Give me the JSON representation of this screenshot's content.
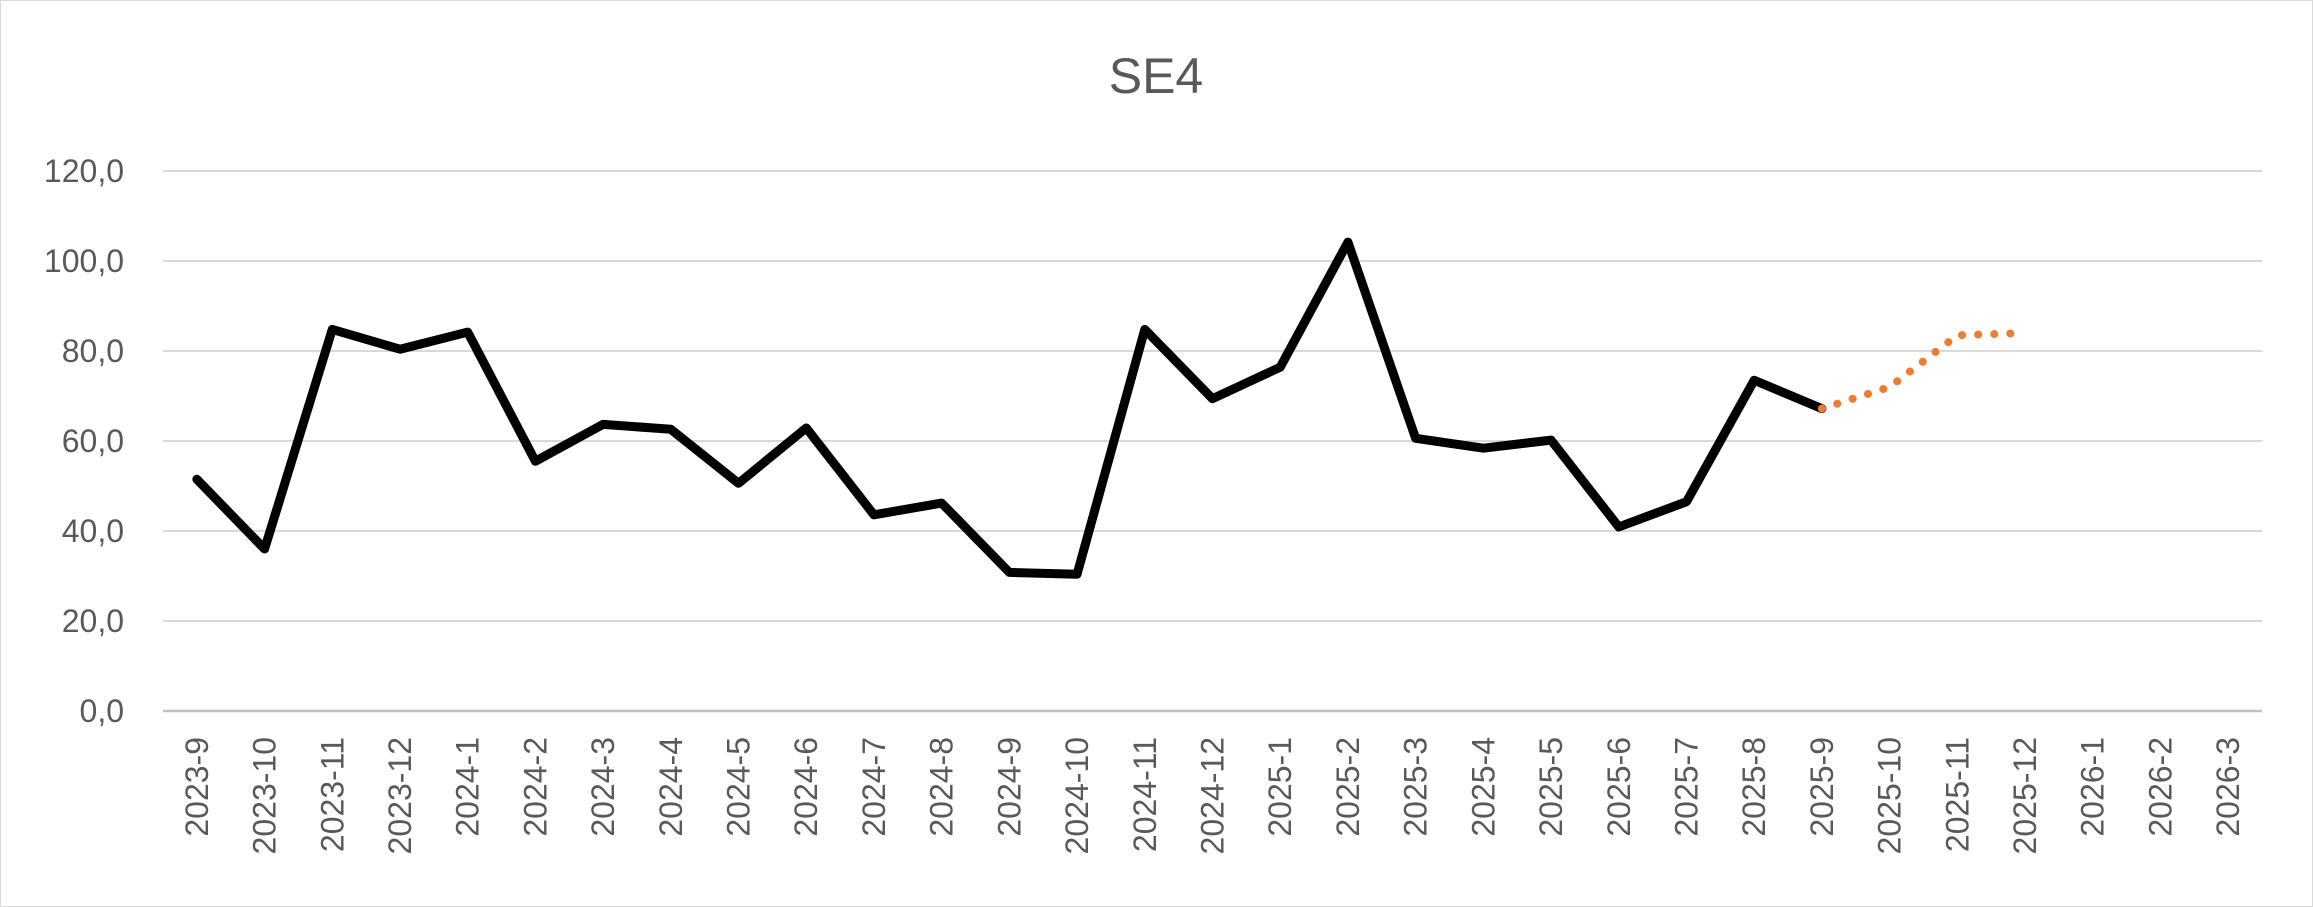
{
  "chart_data": {
    "type": "line",
    "title": "SE4",
    "xlabel": "",
    "ylabel": "",
    "ylim": [
      0,
      120
    ],
    "yticks": [
      "0,0",
      "20,0",
      "40,0",
      "60,0",
      "80,0",
      "100,0",
      "120,0"
    ],
    "categories": [
      "2023-9",
      "2023-10",
      "2023-11",
      "2023-12",
      "2024-1",
      "2024-2",
      "2024-3",
      "2024-4",
      "2024-5",
      "2024-6",
      "2024-7",
      "2024-8",
      "2024-9",
      "2024-10",
      "2024-11",
      "2024-12",
      "2025-1",
      "2025-2",
      "2025-3",
      "2025-4",
      "2025-5",
      "2025-6",
      "2025-7",
      "2025-8",
      "2025-9",
      "2025-10",
      "2025-11",
      "2025-12",
      "2026-1",
      "2026-2",
      "2026-3"
    ],
    "grid": true,
    "legend": "none",
    "series": [
      {
        "style": "solid",
        "color": "#000000",
        "values": [
          51.5,
          36.0,
          84.8,
          80.4,
          84.2,
          55.5,
          63.7,
          62.6,
          50.6,
          62.9,
          43.6,
          46.2,
          30.8,
          30.4,
          84.8,
          69.4,
          76.4,
          104.2,
          60.6,
          58.4,
          60.2,
          40.9,
          46.5,
          73.5,
          67.2,
          null,
          null,
          null,
          null,
          null,
          null
        ]
      },
      {
        "style": "dotted",
        "color": "#ED7D31",
        "values": [
          null,
          null,
          null,
          null,
          null,
          null,
          null,
          null,
          null,
          null,
          null,
          null,
          null,
          null,
          null,
          null,
          null,
          null,
          null,
          null,
          null,
          null,
          null,
          null,
          67.2,
          72.0,
          83.5,
          84.0,
          null,
          null,
          null
        ]
      }
    ]
  }
}
